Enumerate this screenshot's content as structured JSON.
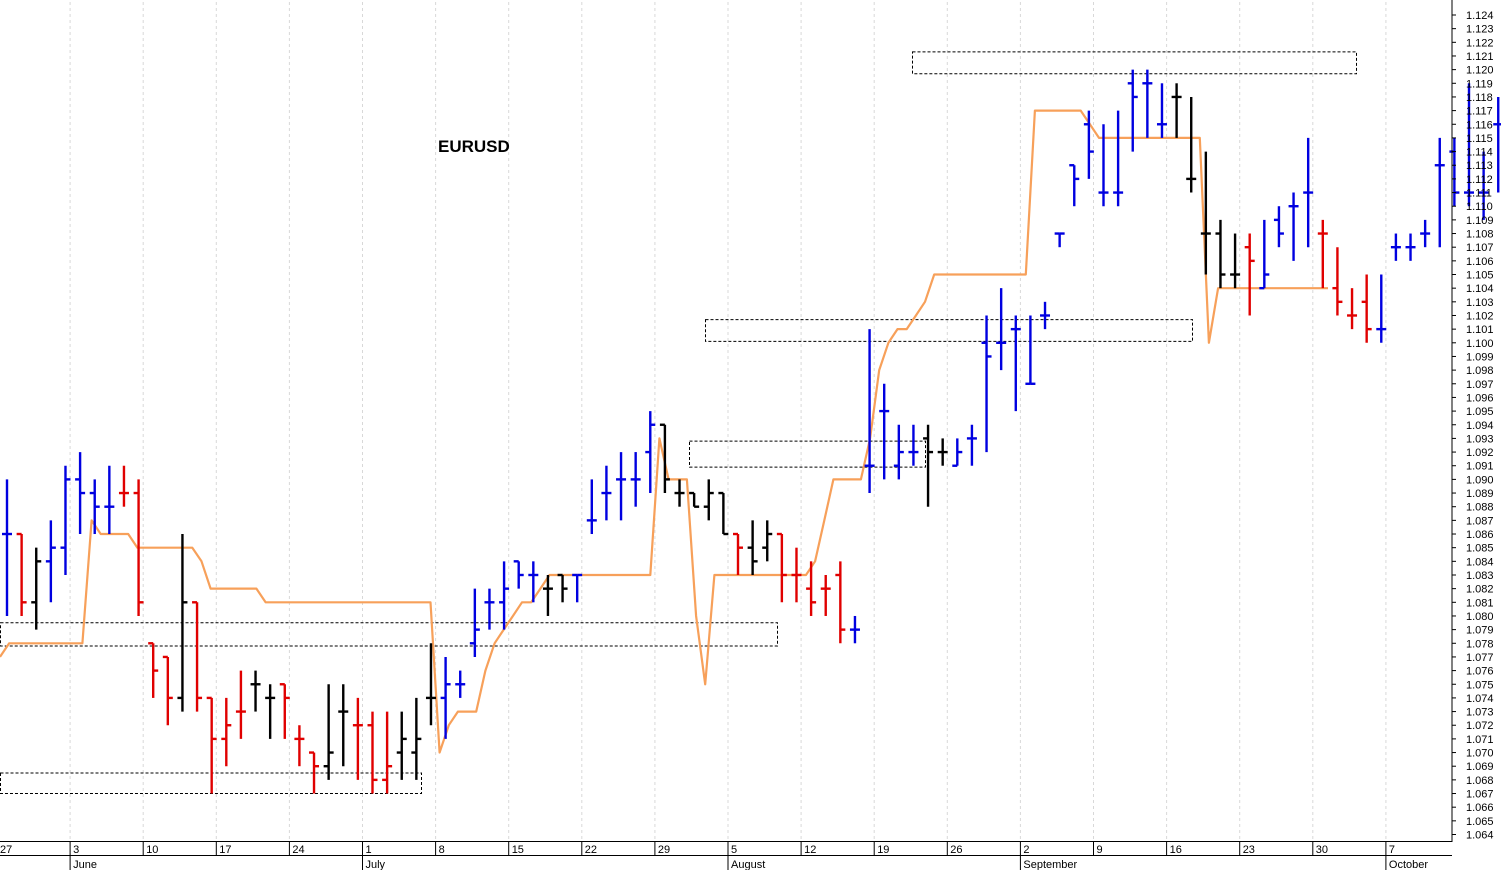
{
  "chart_data": {
    "type": "ohlc",
    "title": "EURUSD",
    "ylim": [
      1.064,
      1.124
    ],
    "yticks": [
      1.064,
      1.065,
      1.066,
      1.067,
      1.068,
      1.069,
      1.07,
      1.071,
      1.072,
      1.073,
      1.074,
      1.075,
      1.076,
      1.077,
      1.078,
      1.079,
      1.08,
      1.081,
      1.082,
      1.083,
      1.084,
      1.085,
      1.086,
      1.087,
      1.088,
      1.089,
      1.09,
      1.091,
      1.092,
      1.093,
      1.094,
      1.095,
      1.096,
      1.097,
      1.098,
      1.099,
      1.1,
      1.101,
      1.102,
      1.103,
      1.104,
      1.105,
      1.106,
      1.107,
      1.108,
      1.109,
      1.11,
      1.111,
      1.112,
      1.113,
      1.114,
      1.115,
      1.116,
      1.117,
      1.118,
      1.119,
      1.12,
      1.121,
      1.122,
      1.123,
      1.124
    ],
    "day_ticks": [
      "27",
      "3",
      "10",
      "17",
      "24",
      "1",
      "8",
      "15",
      "22",
      "29",
      "5",
      "12",
      "19",
      "26",
      "2",
      "9",
      "16",
      "23",
      "30",
      "7"
    ],
    "month_labels": [
      "June",
      "July",
      "August",
      "September",
      "October"
    ],
    "colors": {
      "up": "#0000e0",
      "down": "#e00000",
      "neutral": "#000000",
      "line": "#f7a05a",
      "grid": "#d8d8d8"
    },
    "series": [
      {
        "type": "ohlc",
        "bars": [
          [
            1.086,
            1.09,
            1.08,
            1.086,
            "up"
          ],
          [
            1.086,
            1.086,
            1.08,
            1.081,
            "down"
          ],
          [
            1.081,
            1.085,
            1.079,
            1.084,
            "neutral"
          ],
          [
            1.084,
            1.087,
            1.081,
            1.085,
            "up"
          ],
          [
            1.085,
            1.091,
            1.083,
            1.09,
            "up"
          ],
          [
            1.09,
            1.092,
            1.086,
            1.089,
            "up"
          ],
          [
            1.089,
            1.09,
            1.086,
            1.088,
            "up"
          ],
          [
            1.088,
            1.091,
            1.086,
            1.088,
            "up"
          ],
          [
            1.089,
            1.091,
            1.088,
            1.089,
            "down"
          ],
          [
            1.089,
            1.09,
            1.08,
            1.081,
            "down"
          ],
          [
            1.078,
            1.078,
            1.074,
            1.076,
            "down"
          ],
          [
            1.077,
            1.077,
            1.072,
            1.074,
            "down"
          ],
          [
            1.074,
            1.086,
            1.073,
            1.081,
            "neutral"
          ],
          [
            1.081,
            1.081,
            1.073,
            1.074,
            "down"
          ],
          [
            1.074,
            1.074,
            1.067,
            1.071,
            "down"
          ],
          [
            1.071,
            1.074,
            1.069,
            1.072,
            "down"
          ],
          [
            1.073,
            1.076,
            1.071,
            1.073,
            "down"
          ],
          [
            1.075,
            1.076,
            1.073,
            1.075,
            "neutral"
          ],
          [
            1.074,
            1.075,
            1.071,
            1.074,
            "neutral"
          ],
          [
            1.075,
            1.075,
            1.071,
            1.074,
            "down"
          ],
          [
            1.071,
            1.072,
            1.069,
            1.071,
            "down"
          ],
          [
            1.07,
            1.07,
            1.067,
            1.069,
            "down"
          ],
          [
            1.069,
            1.075,
            1.068,
            1.07,
            "neutral"
          ],
          [
            1.073,
            1.075,
            1.069,
            1.073,
            "neutral"
          ],
          [
            1.072,
            1.074,
            1.068,
            1.072,
            "down"
          ],
          [
            1.072,
            1.073,
            1.067,
            1.068,
            "down"
          ],
          [
            1.068,
            1.073,
            1.067,
            1.069,
            "down"
          ],
          [
            1.07,
            1.073,
            1.068,
            1.071,
            "neutral"
          ],
          [
            1.07,
            1.074,
            1.068,
            1.071,
            "neutral"
          ],
          [
            1.074,
            1.078,
            1.072,
            1.074,
            "neutral"
          ],
          [
            1.074,
            1.077,
            1.071,
            1.075,
            "up"
          ],
          [
            1.075,
            1.076,
            1.074,
            1.075,
            "up"
          ],
          [
            1.078,
            1.082,
            1.077,
            1.079,
            "up"
          ],
          [
            1.081,
            1.082,
            1.079,
            1.081,
            "up"
          ],
          [
            1.081,
            1.084,
            1.079,
            1.082,
            "up"
          ],
          [
            1.084,
            1.084,
            1.082,
            1.083,
            "up"
          ],
          [
            1.083,
            1.084,
            1.081,
            1.083,
            "up"
          ],
          [
            1.082,
            1.083,
            1.08,
            1.082,
            "neutral"
          ],
          [
            1.083,
            1.083,
            1.081,
            1.082,
            "neutral"
          ],
          [
            1.083,
            1.083,
            1.081,
            1.083,
            "up"
          ],
          [
            1.087,
            1.09,
            1.086,
            1.087,
            "up"
          ],
          [
            1.089,
            1.091,
            1.087,
            1.089,
            "up"
          ],
          [
            1.09,
            1.092,
            1.087,
            1.09,
            "up"
          ],
          [
            1.09,
            1.092,
            1.088,
            1.09,
            "up"
          ],
          [
            1.092,
            1.095,
            1.089,
            1.094,
            "up"
          ],
          [
            1.094,
            1.094,
            1.089,
            1.09,
            "neutral"
          ],
          [
            1.089,
            1.09,
            1.088,
            1.089,
            "neutral"
          ],
          [
            1.089,
            1.089,
            1.088,
            1.088,
            "neutral"
          ],
          [
            1.088,
            1.09,
            1.087,
            1.089,
            "neutral"
          ],
          [
            1.089,
            1.089,
            1.086,
            1.086,
            "neutral"
          ],
          [
            1.086,
            1.086,
            1.083,
            1.085,
            "down"
          ],
          [
            1.085,
            1.087,
            1.083,
            1.084,
            "neutral"
          ],
          [
            1.085,
            1.087,
            1.084,
            1.086,
            "neutral"
          ],
          [
            1.086,
            1.086,
            1.081,
            1.083,
            "down"
          ],
          [
            1.083,
            1.085,
            1.081,
            1.083,
            "down"
          ],
          [
            1.082,
            1.084,
            1.08,
            1.081,
            "down"
          ],
          [
            1.082,
            1.083,
            1.08,
            1.082,
            "down"
          ],
          [
            1.083,
            1.084,
            1.078,
            1.079,
            "down"
          ],
          [
            1.079,
            1.08,
            1.078,
            1.079,
            "up"
          ],
          [
            1.091,
            1.101,
            1.089,
            1.091,
            "up"
          ],
          [
            1.095,
            1.097,
            1.09,
            1.095,
            "up"
          ],
          [
            1.091,
            1.094,
            1.09,
            1.092,
            "up"
          ],
          [
            1.092,
            1.094,
            1.091,
            1.092,
            "up"
          ],
          [
            1.093,
            1.094,
            1.088,
            1.092,
            "neutral"
          ],
          [
            1.092,
            1.093,
            1.091,
            1.092,
            "neutral"
          ],
          [
            1.091,
            1.093,
            1.091,
            1.092,
            "up"
          ],
          [
            1.093,
            1.094,
            1.091,
            1.093,
            "up"
          ],
          [
            1.1,
            1.102,
            1.092,
            1.099,
            "up"
          ],
          [
            1.1,
            1.104,
            1.098,
            1.1,
            "up"
          ],
          [
            1.101,
            1.102,
            1.095,
            1.101,
            "up"
          ],
          [
            1.097,
            1.102,
            1.097,
            1.097,
            "up"
          ],
          [
            1.102,
            1.103,
            1.101,
            1.102,
            "up"
          ],
          [
            1.108,
            1.108,
            1.107,
            1.108,
            "up"
          ],
          [
            1.113,
            1.113,
            1.11,
            1.112,
            "up"
          ],
          [
            1.116,
            1.117,
            1.112,
            1.114,
            "up"
          ],
          [
            1.111,
            1.116,
            1.11,
            1.111,
            "up"
          ],
          [
            1.111,
            1.117,
            1.11,
            1.111,
            "up"
          ],
          [
            1.119,
            1.12,
            1.114,
            1.118,
            "up"
          ],
          [
            1.119,
            1.12,
            1.115,
            1.119,
            "up"
          ],
          [
            1.116,
            1.119,
            1.115,
            1.116,
            "up"
          ],
          [
            1.118,
            1.119,
            1.115,
            1.118,
            "neutral"
          ],
          [
            1.112,
            1.118,
            1.111,
            1.112,
            "neutral"
          ],
          [
            1.108,
            1.114,
            1.105,
            1.108,
            "neutral"
          ],
          [
            1.108,
            1.109,
            1.104,
            1.105,
            "neutral"
          ],
          [
            1.105,
            1.108,
            1.104,
            1.105,
            "neutral"
          ],
          [
            1.107,
            1.108,
            1.102,
            1.106,
            "down"
          ],
          [
            1.104,
            1.109,
            1.104,
            1.105,
            "up"
          ],
          [
            1.109,
            1.11,
            1.107,
            1.108,
            "up"
          ],
          [
            1.11,
            1.111,
            1.106,
            1.11,
            "up"
          ],
          [
            1.111,
            1.115,
            1.107,
            1.111,
            "up"
          ],
          [
            1.108,
            1.109,
            1.104,
            1.108,
            "down"
          ],
          [
            1.104,
            1.107,
            1.102,
            1.103,
            "down"
          ],
          [
            1.102,
            1.104,
            1.101,
            1.102,
            "down"
          ],
          [
            1.103,
            1.105,
            1.1,
            1.101,
            "down"
          ],
          [
            1.101,
            1.105,
            1.1,
            1.101,
            "up"
          ],
          [
            1.107,
            1.108,
            1.106,
            1.107,
            "up"
          ],
          [
            1.107,
            1.108,
            1.106,
            1.107,
            "up"
          ],
          [
            1.108,
            1.109,
            1.107,
            1.108,
            "up"
          ],
          [
            1.113,
            1.115,
            1.107,
            1.113,
            "up"
          ],
          [
            1.114,
            1.115,
            1.11,
            1.111,
            "up"
          ],
          [
            1.111,
            1.119,
            1.11,
            1.111,
            "up"
          ],
          [
            1.111,
            1.114,
            1.109,
            1.111,
            "up"
          ],
          [
            1.116,
            1.118,
            1.111,
            1.116,
            "up"
          ],
          [
            1.116,
            1.117,
            1.114,
            1.116,
            "up"
          ],
          [
            1.116,
            1.117,
            1.114,
            1.116,
            "up"
          ],
          [
            1.118,
            1.118,
            1.108,
            1.111,
            "neutral"
          ],
          [
            1.111,
            1.112,
            1.11,
            1.111,
            "neutral"
          ],
          [
            1.118,
            1.119,
            1.113,
            1.118,
            "up"
          ],
          [
            1.118,
            1.118,
            1.113,
            1.118,
            "up"
          ],
          [
            1.114,
            1.121,
            1.113,
            1.114,
            "neutral"
          ],
          [
            1.114,
            1.117,
            1.113,
            1.114,
            "up"
          ],
          [
            1.114,
            1.119,
            1.112,
            1.117,
            "up"
          ],
          [
            1.117,
            1.12,
            1.112,
            1.117,
            "up"
          ],
          [
            1.117,
            1.121,
            1.111,
            1.114,
            "neutral"
          ]
        ]
      },
      {
        "type": "line",
        "values": [
          1.077,
          1.078,
          1.078,
          1.078,
          1.078,
          1.078,
          1.078,
          1.078,
          1.078,
          1.078,
          1.087,
          1.086,
          1.086,
          1.086,
          1.086,
          1.085,
          1.085,
          1.085,
          1.085,
          1.085,
          1.085,
          1.085,
          1.084,
          1.082,
          1.082,
          1.082,
          1.082,
          1.082,
          1.082,
          1.081,
          1.081,
          1.081,
          1.081,
          1.081,
          1.081,
          1.081,
          1.081,
          1.081,
          1.081,
          1.081,
          1.081,
          1.081,
          1.081,
          1.081,
          1.081,
          1.081,
          1.081,
          1.081,
          1.07,
          1.072,
          1.073,
          1.073,
          1.073,
          1.076,
          1.078,
          1.079,
          1.08,
          1.081,
          1.081,
          1.082,
          1.083,
          1.083,
          1.083,
          1.083,
          1.083,
          1.083,
          1.083,
          1.083,
          1.083,
          1.083,
          1.083,
          1.083,
          1.093,
          1.09,
          1.09,
          1.09,
          1.08,
          1.075,
          1.083,
          1.083,
          1.083,
          1.083,
          1.083,
          1.083,
          1.083,
          1.083,
          1.083,
          1.083,
          1.083,
          1.084,
          1.087,
          1.09,
          1.09,
          1.09,
          1.09,
          1.093,
          1.098,
          1.1,
          1.101,
          1.101,
          1.102,
          1.103,
          1.105,
          1.105,
          1.105,
          1.105,
          1.105,
          1.105,
          1.105,
          1.105,
          1.105,
          1.105,
          1.105,
          1.117,
          1.117,
          1.117,
          1.117,
          1.117,
          1.117,
          1.116,
          1.115,
          1.115,
          1.115,
          1.115,
          1.115,
          1.115,
          1.115,
          1.115,
          1.115,
          1.115,
          1.115,
          1.115,
          1.1,
          1.104,
          1.104,
          1.104,
          1.104,
          1.104,
          1.104,
          1.104,
          1.104,
          1.104,
          1.104,
          1.104,
          1.104,
          1.104
        ]
      },
      {
        "type": "zones",
        "ranges": [
          [
            1.0795,
            1.0778
          ],
          [
            1.0685,
            1.067
          ],
          [
            1.0928,
            1.0909
          ],
          [
            1.1017,
            1.1001
          ],
          [
            1.1213,
            1.1197
          ]
        ]
      }
    ]
  }
}
